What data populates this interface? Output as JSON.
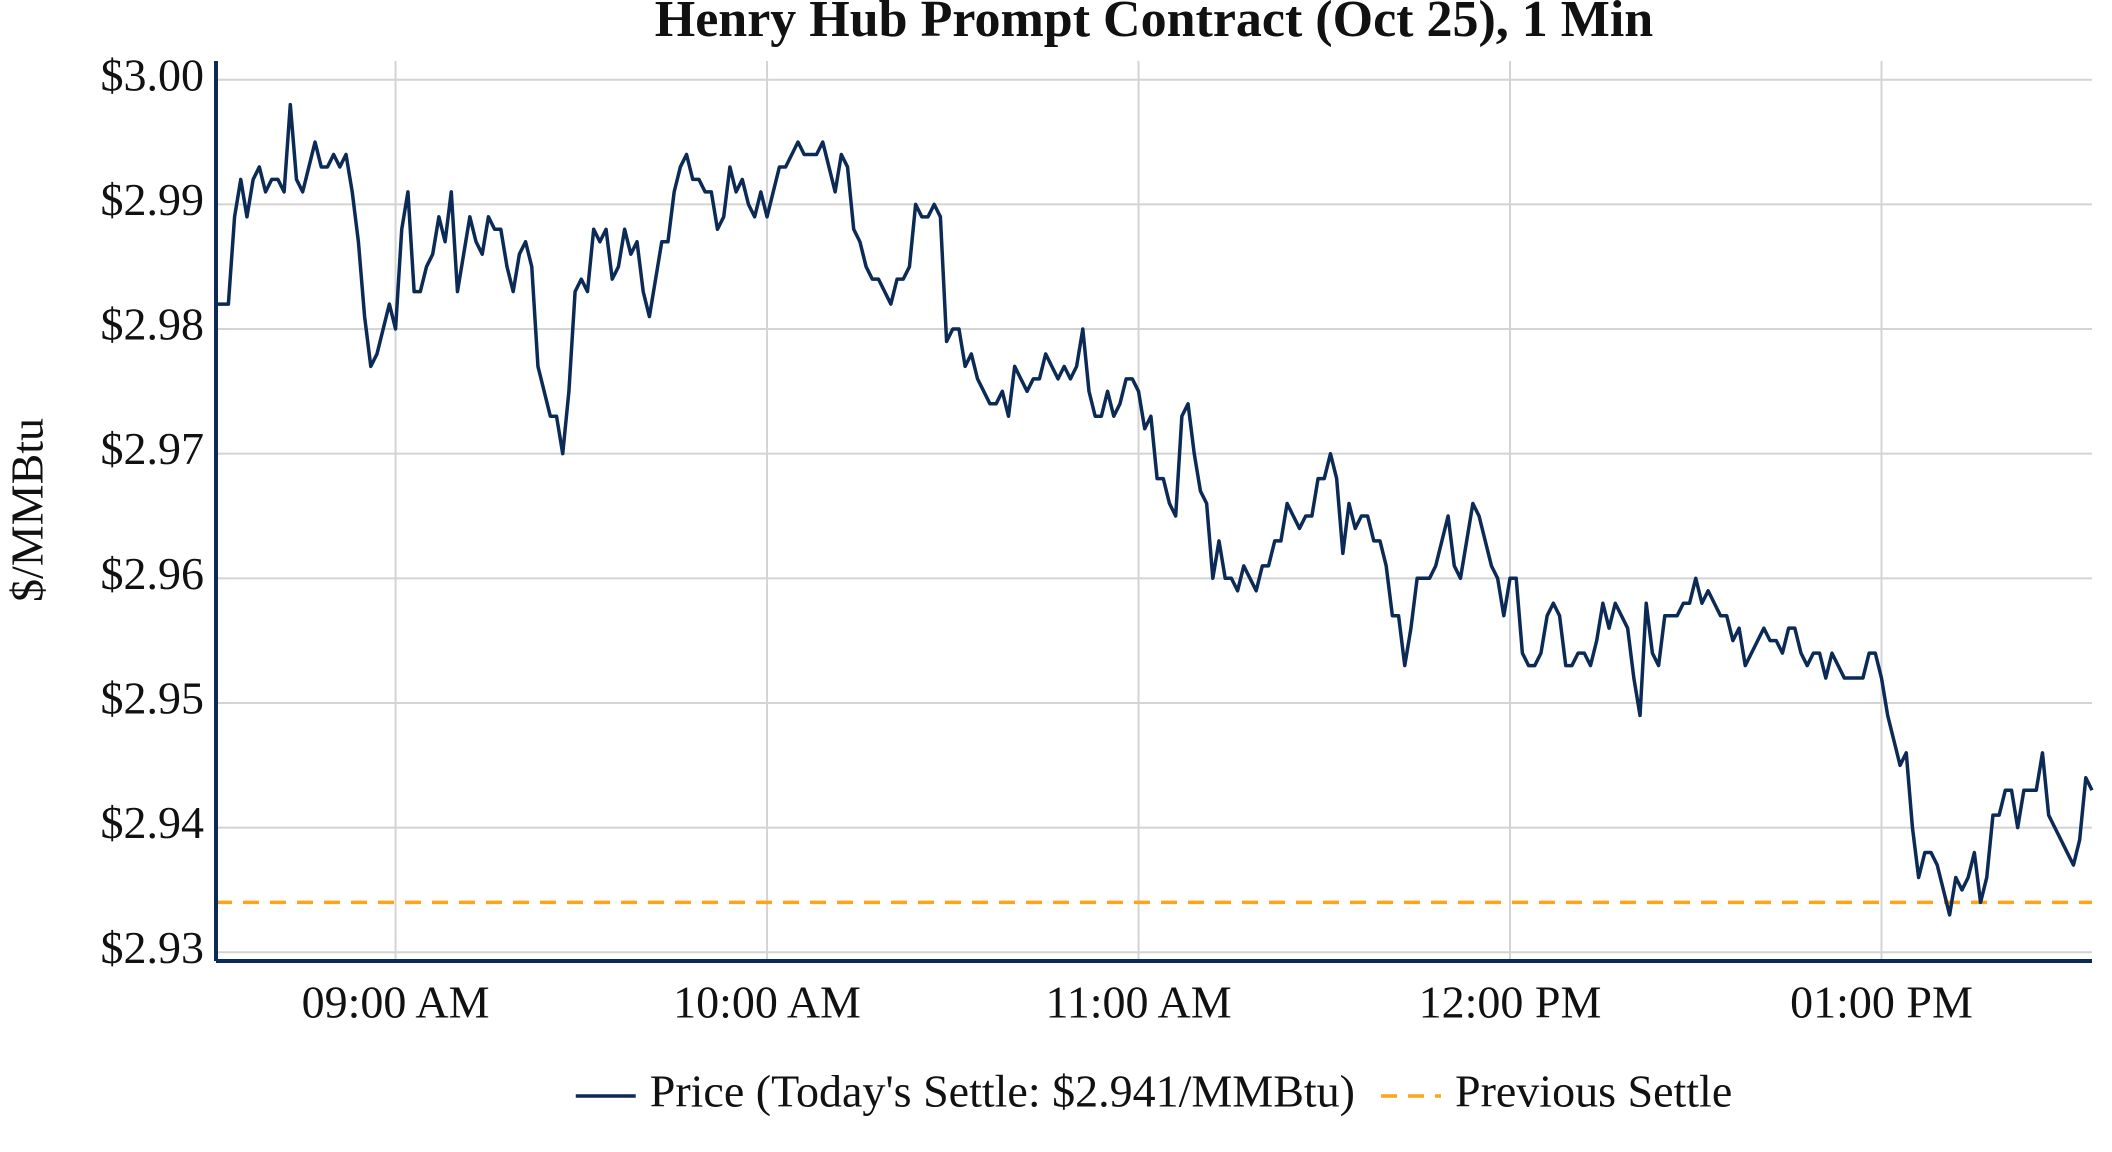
{
  "chart_data": {
    "type": "line",
    "title": "Henry Hub Prompt Contract (Oct 25), 1 Min",
    "y_label": "$/MMBtu",
    "x": [
      "08:31",
      "08:32",
      "08:33",
      "08:34",
      "08:35",
      "08:36",
      "08:37",
      "08:38",
      "08:39",
      "08:40",
      "08:41",
      "08:42",
      "08:43",
      "08:44",
      "08:45",
      "08:46",
      "08:47",
      "08:48",
      "08:49",
      "08:50",
      "08:51",
      "08:52",
      "08:53",
      "08:54",
      "08:55",
      "08:56",
      "08:57",
      "08:58",
      "08:59",
      "09:00",
      "09:01",
      "09:02",
      "09:03",
      "09:04",
      "09:05",
      "09:06",
      "09:07",
      "09:08",
      "09:09",
      "09:10",
      "09:11",
      "09:12",
      "09:13",
      "09:14",
      "09:15",
      "09:16",
      "09:17",
      "09:18",
      "09:19",
      "09:20",
      "09:21",
      "09:22",
      "09:23",
      "09:24",
      "09:25",
      "09:26",
      "09:27",
      "09:28",
      "09:29",
      "09:30",
      "09:31",
      "09:32",
      "09:33",
      "09:34",
      "09:35",
      "09:36",
      "09:37",
      "09:38",
      "09:39",
      "09:40",
      "09:41",
      "09:42",
      "09:43",
      "09:44",
      "09:45",
      "09:46",
      "09:47",
      "09:48",
      "09:49",
      "09:50",
      "09:51",
      "09:52",
      "09:53",
      "09:54",
      "09:55",
      "09:56",
      "09:57",
      "09:58",
      "09:59",
      "10:00",
      "10:01",
      "10:02",
      "10:03",
      "10:04",
      "10:05",
      "10:06",
      "10:07",
      "10:08",
      "10:09",
      "10:10",
      "10:11",
      "10:12",
      "10:13",
      "10:14",
      "10:15",
      "10:16",
      "10:17",
      "10:18",
      "10:19",
      "10:20",
      "10:21",
      "10:22",
      "10:23",
      "10:24",
      "10:25",
      "10:26",
      "10:27",
      "10:28",
      "10:29",
      "10:30",
      "10:31",
      "10:32",
      "10:33",
      "10:34",
      "10:35",
      "10:36",
      "10:37",
      "10:38",
      "10:39",
      "10:40",
      "10:41",
      "10:42",
      "10:43",
      "10:44",
      "10:45",
      "10:46",
      "10:47",
      "10:48",
      "10:49",
      "10:50",
      "10:51",
      "10:52",
      "10:53",
      "10:54",
      "10:55",
      "10:56",
      "10:57",
      "10:58",
      "10:59",
      "11:00",
      "11:01",
      "11:02",
      "11:03",
      "11:04",
      "11:05",
      "11:06",
      "11:07",
      "11:08",
      "11:09",
      "11:10",
      "11:11",
      "11:12",
      "11:13",
      "11:14",
      "11:15",
      "11:16",
      "11:17",
      "11:18",
      "11:19",
      "11:20",
      "11:21",
      "11:22",
      "11:23",
      "11:24",
      "11:25",
      "11:26",
      "11:27",
      "11:28",
      "11:29",
      "11:30",
      "11:31",
      "11:32",
      "11:33",
      "11:34",
      "11:35",
      "11:36",
      "11:37",
      "11:38",
      "11:39",
      "11:40",
      "11:41",
      "11:42",
      "11:43",
      "11:44",
      "11:45",
      "11:46",
      "11:47",
      "11:48",
      "11:49",
      "11:50",
      "11:51",
      "11:52",
      "11:53",
      "11:54",
      "11:55",
      "11:56",
      "11:57",
      "11:58",
      "11:59",
      "12:00",
      "12:01",
      "12:02",
      "12:03",
      "12:04",
      "12:05",
      "12:06",
      "12:07",
      "12:08",
      "12:09",
      "12:10",
      "12:11",
      "12:12",
      "12:13",
      "12:14",
      "12:15",
      "12:16",
      "12:17",
      "12:18",
      "12:19",
      "12:20",
      "12:21",
      "12:22",
      "12:23",
      "12:24",
      "12:25",
      "12:26",
      "12:27",
      "12:28",
      "12:29",
      "12:30",
      "12:31",
      "12:32",
      "12:33",
      "12:34",
      "12:35",
      "12:36",
      "12:37",
      "12:38",
      "12:39",
      "12:40",
      "12:41",
      "12:42",
      "12:43",
      "12:44",
      "12:45",
      "12:46",
      "12:47",
      "12:48",
      "12:49",
      "12:50",
      "12:51",
      "12:52",
      "12:53",
      "12:54",
      "12:55",
      "12:56",
      "12:57",
      "12:58",
      "12:59",
      "13:00",
      "13:01",
      "13:02",
      "13:03",
      "13:04",
      "13:05",
      "13:06",
      "13:07",
      "13:08",
      "13:09",
      "13:10",
      "13:11",
      "13:12",
      "13:13",
      "13:14",
      "13:15",
      "13:16",
      "13:17",
      "13:18",
      "13:19",
      "13:20",
      "13:21",
      "13:22",
      "13:23",
      "13:24",
      "13:25",
      "13:26",
      "13:27",
      "13:28",
      "13:29",
      "13:30",
      "13:31",
      "13:32",
      "13:33",
      "13:34"
    ],
    "series": [
      {
        "name": "Price (Today's Settle: $2.941/MMBtu)",
        "color": "#0b2a55",
        "values": [
          2.982,
          2.982,
          2.982,
          2.989,
          2.992,
          2.989,
          2.992,
          2.993,
          2.991,
          2.992,
          2.992,
          2.991,
          2.998,
          2.992,
          2.991,
          2.993,
          2.995,
          2.993,
          2.993,
          2.994,
          2.993,
          2.994,
          2.991,
          2.987,
          2.981,
          2.977,
          2.978,
          2.98,
          2.982,
          2.98,
          2.988,
          2.991,
          2.983,
          2.983,
          2.985,
          2.986,
          2.989,
          2.987,
          2.991,
          2.983,
          2.986,
          2.989,
          2.987,
          2.986,
          2.989,
          2.988,
          2.988,
          2.985,
          2.983,
          2.986,
          2.987,
          2.985,
          2.977,
          2.975,
          2.973,
          2.973,
          2.97,
          2.975,
          2.983,
          2.984,
          2.983,
          2.988,
          2.987,
          2.988,
          2.984,
          2.985,
          2.988,
          2.986,
          2.987,
          2.983,
          2.981,
          2.984,
          2.987,
          2.987,
          2.991,
          2.993,
          2.994,
          2.992,
          2.992,
          2.991,
          2.991,
          2.988,
          2.989,
          2.993,
          2.991,
          2.992,
          2.99,
          2.989,
          2.991,
          2.989,
          2.991,
          2.993,
          2.993,
          2.994,
          2.995,
          2.994,
          2.994,
          2.994,
          2.995,
          2.993,
          2.991,
          2.994,
          2.993,
          2.988,
          2.987,
          2.985,
          2.984,
          2.984,
          2.983,
          2.982,
          2.984,
          2.984,
          2.985,
          2.99,
          2.989,
          2.989,
          2.99,
          2.989,
          2.979,
          2.98,
          2.98,
          2.977,
          2.978,
          2.976,
          2.975,
          2.974,
          2.974,
          2.975,
          2.973,
          2.977,
          2.976,
          2.975,
          2.976,
          2.976,
          2.978,
          2.977,
          2.976,
          2.977,
          2.976,
          2.977,
          2.98,
          2.975,
          2.973,
          2.973,
          2.975,
          2.973,
          2.974,
          2.976,
          2.976,
          2.975,
          2.972,
          2.973,
          2.968,
          2.968,
          2.966,
          2.965,
          2.973,
          2.974,
          2.97,
          2.967,
          2.966,
          2.96,
          2.963,
          2.96,
          2.96,
          2.959,
          2.961,
          2.96,
          2.959,
          2.961,
          2.961,
          2.963,
          2.963,
          2.966,
          2.965,
          2.964,
          2.965,
          2.965,
          2.968,
          2.968,
          2.97,
          2.968,
          2.962,
          2.966,
          2.964,
          2.965,
          2.965,
          2.963,
          2.963,
          2.961,
          2.957,
          2.957,
          2.953,
          2.956,
          2.96,
          2.96,
          2.96,
          2.961,
          2.963,
          2.965,
          2.961,
          2.96,
          2.963,
          2.966,
          2.965,
          2.963,
          2.961,
          2.96,
          2.957,
          2.96,
          2.96,
          2.954,
          2.953,
          2.953,
          2.954,
          2.957,
          2.958,
          2.957,
          2.953,
          2.953,
          2.954,
          2.954,
          2.953,
          2.955,
          2.958,
          2.956,
          2.958,
          2.957,
          2.956,
          2.952,
          2.949,
          2.958,
          2.954,
          2.953,
          2.957,
          2.957,
          2.957,
          2.958,
          2.958,
          2.96,
          2.958,
          2.959,
          2.958,
          2.957,
          2.957,
          2.955,
          2.956,
          2.953,
          2.954,
          2.955,
          2.956,
          2.955,
          2.955,
          2.954,
          2.956,
          2.956,
          2.954,
          2.953,
          2.954,
          2.954,
          2.952,
          2.954,
          2.953,
          2.952,
          2.952,
          2.952,
          2.952,
          2.954,
          2.954,
          2.952,
          2.949,
          2.947,
          2.945,
          2.946,
          2.94,
          2.936,
          2.938,
          2.938,
          2.937,
          2.935,
          2.933,
          2.936,
          2.935,
          2.936,
          2.938,
          2.934,
          2.936,
          2.941,
          2.941,
          2.943,
          2.943,
          2.94,
          2.943,
          2.943,
          2.943,
          2.946,
          2.941,
          2.94,
          2.939,
          2.938,
          2.937,
          2.939,
          2.944,
          2.943
        ]
      }
    ],
    "reference_lines": [
      {
        "name": "Previous Settle",
        "value": 2.934,
        "color": "#ffa31a",
        "dash": true
      }
    ],
    "xlim": [
      "08:31",
      "13:34"
    ],
    "xticks": [
      {
        "value": "09:00",
        "label": "09:00 AM"
      },
      {
        "value": "10:00",
        "label": "10:00 AM"
      },
      {
        "value": "11:00",
        "label": "11:00 AM"
      },
      {
        "value": "12:00",
        "label": "12:00 PM"
      },
      {
        "value": "13:00",
        "label": "01:00 PM"
      }
    ],
    "ylim": [
      2.9293,
      3.0015
    ],
    "yticks": [
      {
        "value": 2.93,
        "label": "$2.93"
      },
      {
        "value": 2.94,
        "label": "$2.94"
      },
      {
        "value": 2.95,
        "label": "$2.95"
      },
      {
        "value": 2.96,
        "label": "$2.96"
      },
      {
        "value": 2.97,
        "label": "$2.97"
      },
      {
        "value": 2.98,
        "label": "$2.98"
      },
      {
        "value": 2.99,
        "label": "$2.99"
      },
      {
        "value": 3,
        "label": "$3.00"
      }
    ],
    "grid": true,
    "legend": "bottom"
  }
}
